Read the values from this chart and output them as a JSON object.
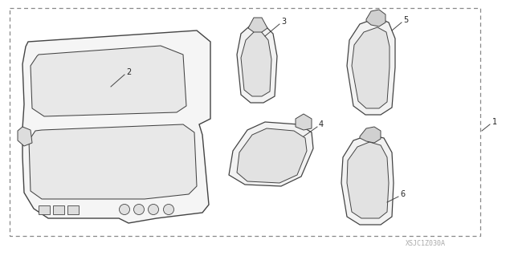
{
  "background_color": "#ffffff",
  "line_color": "#444444",
  "dash_color": "#888888",
  "text_color": "#222222",
  "face_color": "#f0f0f0",
  "inner_face_color": "#e4e4e4",
  "watermark_text": "XSJC1Z030A",
  "watermark_color": "#aaaaaa",
  "labels": [
    "1",
    "2",
    "3",
    "4",
    "5",
    "6"
  ],
  "fig_width": 6.4,
  "fig_height": 3.19,
  "dpi": 100
}
